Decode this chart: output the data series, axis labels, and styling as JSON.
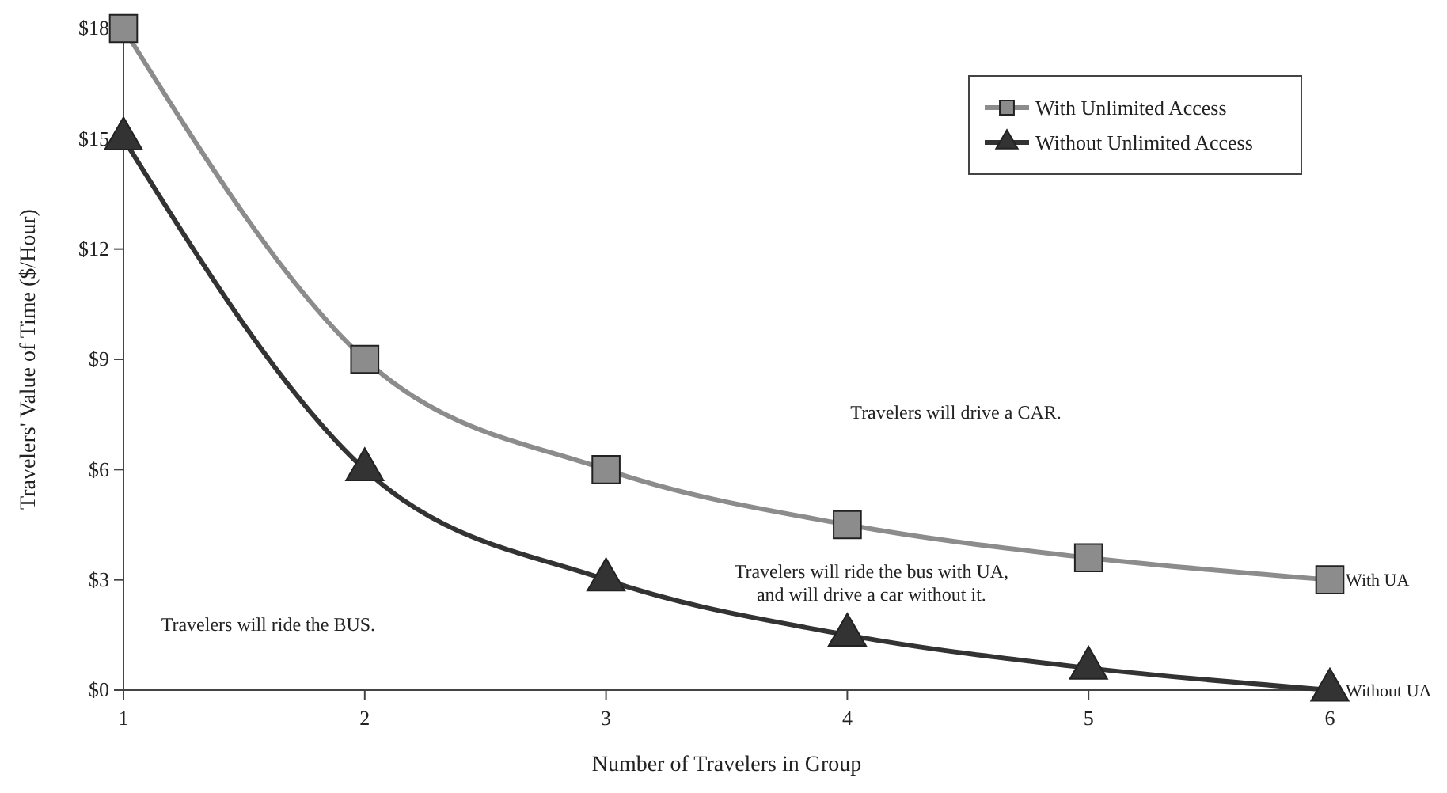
{
  "chart_data": {
    "type": "line",
    "xlabel": "Number of Travelers in Group",
    "ylabel": "Travelers' Value of Time ($/Hour)",
    "x": [
      1,
      2,
      3,
      4,
      5,
      6
    ],
    "series": [
      {
        "name": "With Unlimited Access",
        "color": "#8c8c8c",
        "marker": "square",
        "values": [
          18,
          9,
          6,
          4.5,
          3.6,
          3
        ]
      },
      {
        "name": "Without Unlimited Access",
        "color": "#333333",
        "marker": "triangle",
        "values": [
          15,
          6,
          3,
          1.5,
          0.6,
          0
        ]
      }
    ],
    "xlim": [
      1,
      6
    ],
    "xticks": [
      1,
      2,
      3,
      4,
      5,
      6
    ],
    "ylim": [
      0,
      18
    ],
    "yticks": [
      {
        "value": 0,
        "label": "$0"
      },
      {
        "value": 3,
        "label": "$3"
      },
      {
        "value": 6,
        "label": "$6"
      },
      {
        "value": 9,
        "label": "$9"
      },
      {
        "value": 12,
        "label": "$12"
      },
      {
        "value": 15,
        "label": "$15"
      },
      {
        "value": 18,
        "label": "$18"
      }
    ],
    "grid": false,
    "legend": "top right",
    "line_style": "solid",
    "annotations": [
      "Travelers will drive a CAR.",
      "Travelers will ride the bus with UA,\nand will drive a car without it.",
      "Travelers will ride the BUS.",
      {
        "text": "With UA",
        "x": 6,
        "y": 3
      },
      {
        "text": "Without UA",
        "x": 6,
        "y": 0
      }
    ]
  }
}
